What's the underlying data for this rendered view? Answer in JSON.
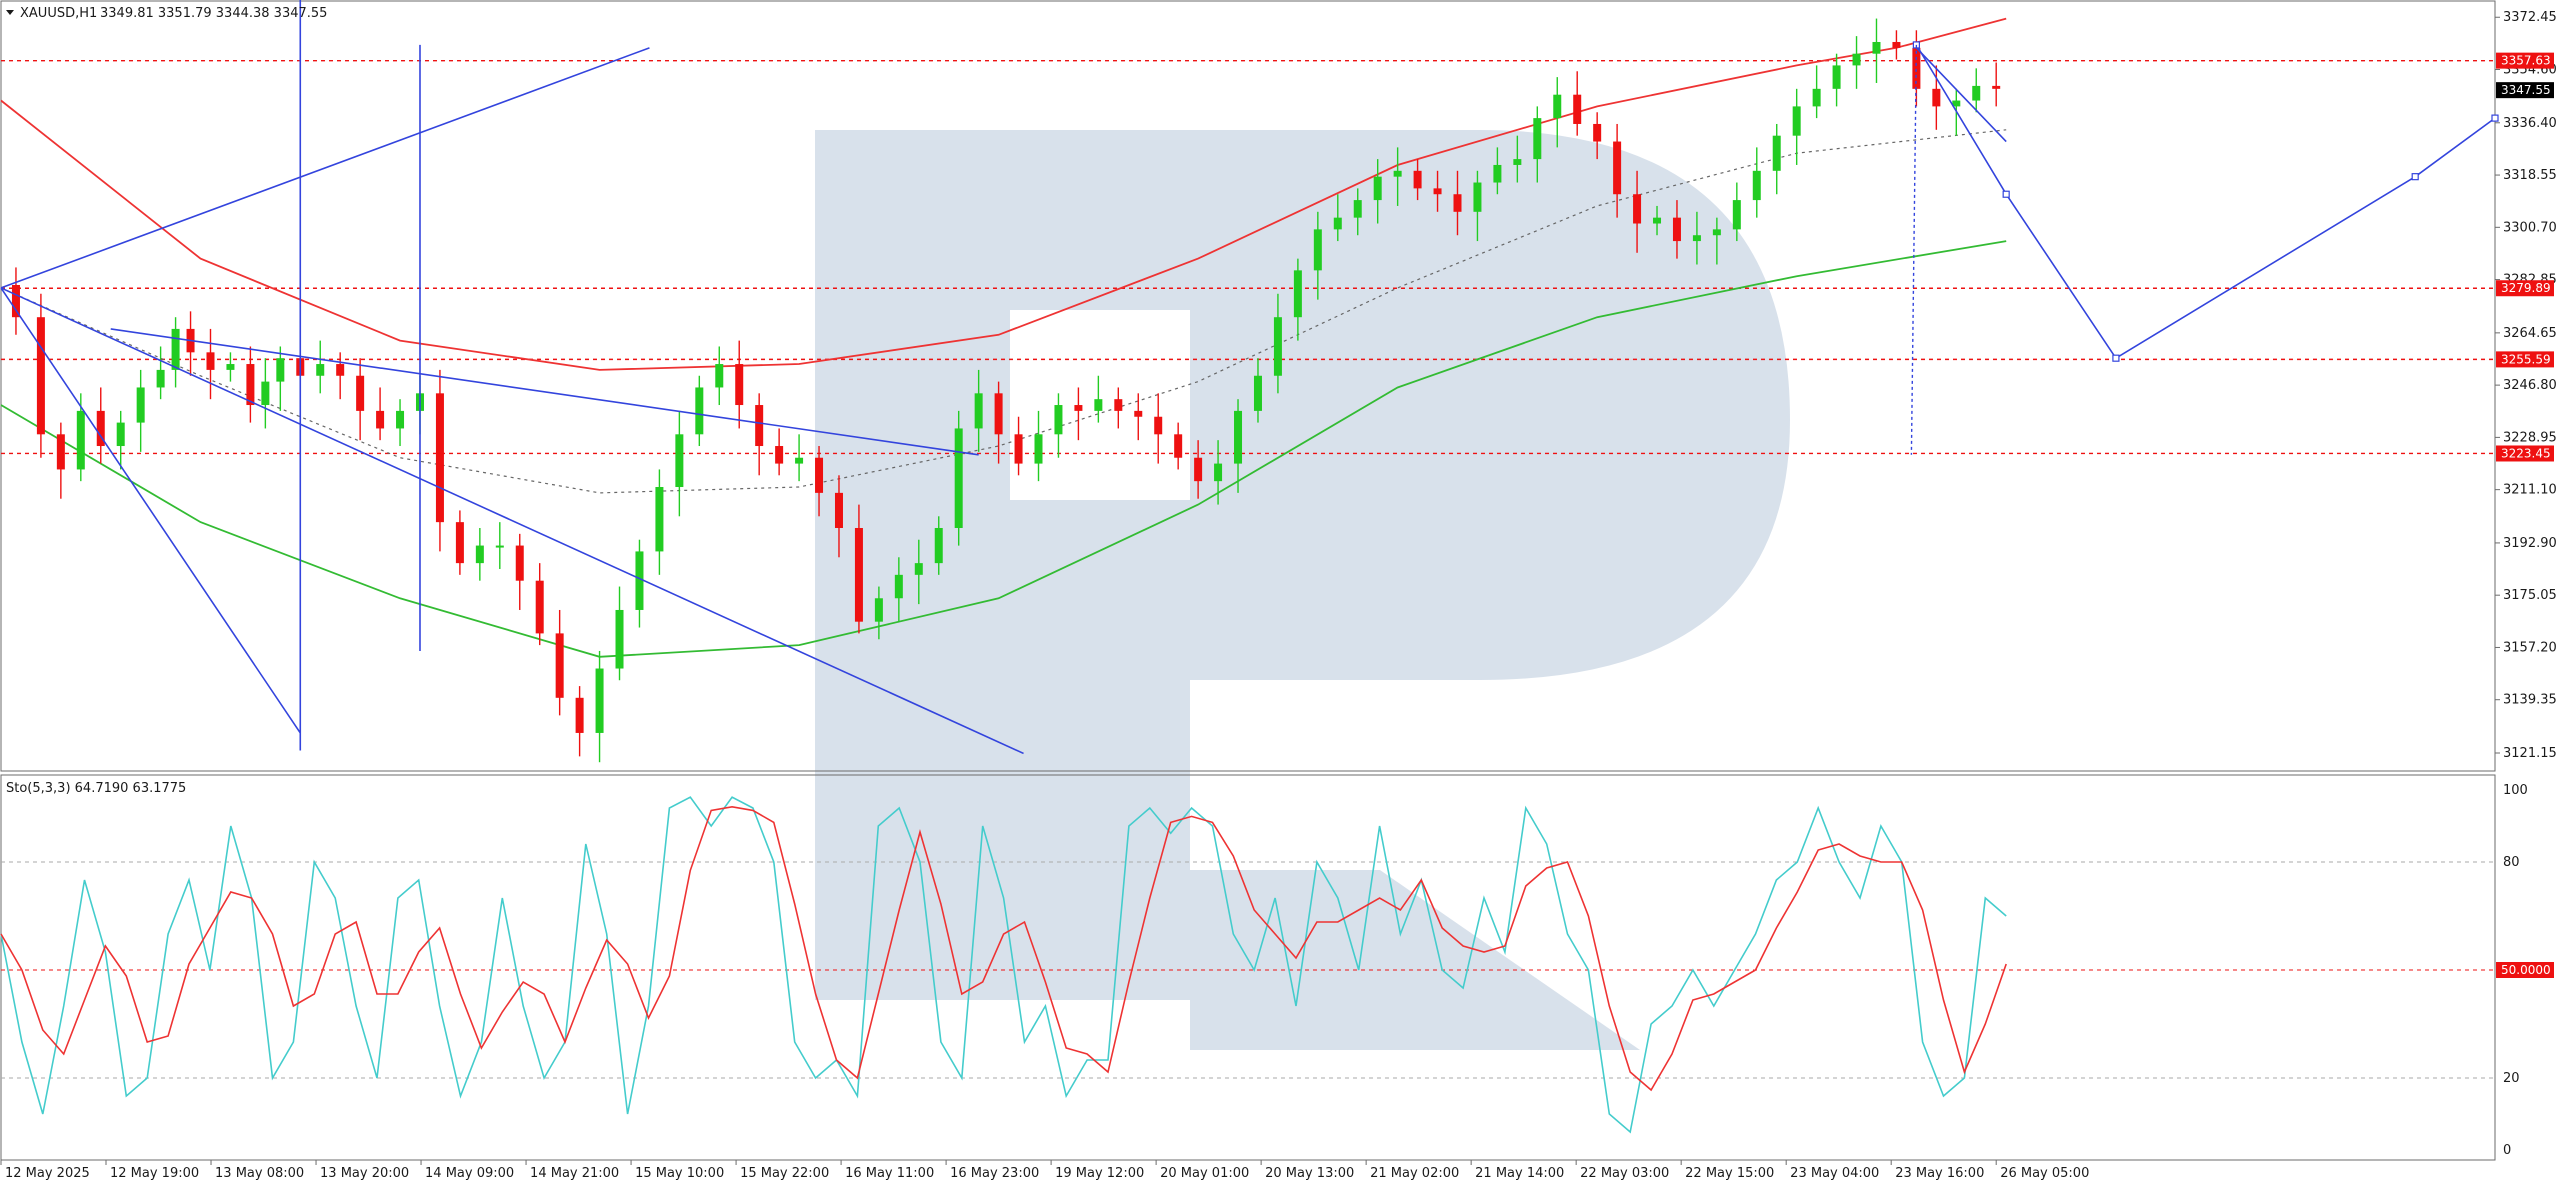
{
  "header": {
    "symbol": "XAUUSD,H1",
    "ohlc": "3349.81 3351.79 3344.38 3347.55"
  },
  "oscillator": {
    "label": "Sto(5,3,3) 64.7190 63.1775",
    "levels": [
      "100",
      "80",
      "20",
      "0"
    ],
    "mid_level": "50.0000"
  },
  "colors": {
    "bull": "#22cc22",
    "bear": "#ee1111",
    "trendline": "#3344dd",
    "ma_red": "#ee3333",
    "ma_green": "#33bb33",
    "level": "#ee1111",
    "stoch_main": "#44cccc",
    "stoch_signal": "#ee3333",
    "watermark": "#d6dfea"
  },
  "chart_data": {
    "type": "candlestick",
    "title": "XAUUSD,H1",
    "price_ticks": [
      "3372.45",
      "3354.60",
      "3336.40",
      "3318.55",
      "3300.70",
      "3282.85",
      "3264.65",
      "3246.80",
      "3228.95",
      "3211.10",
      "3192.90",
      "3175.05",
      "3157.20",
      "3139.35",
      "3121.15"
    ],
    "time_ticks": [
      "12 May 2025",
      "12 May 19:00",
      "13 May 08:00",
      "13 May 20:00",
      "14 May 09:00",
      "14 May 21:00",
      "15 May 10:00",
      "15 May 22:00",
      "16 May 11:00",
      "16 May 23:00",
      "19 May 12:00",
      "20 May 01:00",
      "20 May 13:00",
      "21 May 02:00",
      "21 May 14:00",
      "22 May 03:00",
      "22 May 15:00",
      "23 May 04:00",
      "23 May 16:00",
      "26 May 05:00"
    ],
    "price_levels": [
      {
        "label": "3357.63",
        "value": 3357.63
      },
      {
        "label": "3279.89",
        "value": 3279.89
      },
      {
        "label": "3255.59",
        "value": 3255.59
      },
      {
        "label": "3223.45",
        "value": 3223.45
      }
    ],
    "current_price": {
      "label": "3347.55",
      "value": 3347.55
    },
    "close_path": [
      [
        0,
        3281
      ],
      [
        6,
        3270
      ],
      [
        10,
        3230
      ],
      [
        14,
        3218
      ],
      [
        18,
        3238
      ],
      [
        22,
        3226
      ],
      [
        26,
        3234
      ],
      [
        30,
        3246
      ],
      [
        34,
        3252
      ],
      [
        36,
        3266
      ],
      [
        40,
        3258
      ],
      [
        44,
        3252
      ],
      [
        48,
        3254
      ],
      [
        52,
        3240
      ],
      [
        54,
        3248
      ],
      [
        58,
        3256
      ],
      [
        62,
        3250
      ],
      [
        66,
        3254
      ],
      [
        70,
        3250
      ],
      [
        74,
        3238
      ],
      [
        78,
        3232
      ],
      [
        82,
        3238
      ],
      [
        86,
        3244
      ],
      [
        90,
        3200
      ],
      [
        94,
        3186
      ],
      [
        98,
        3192
      ],
      [
        102,
        3192
      ],
      [
        106,
        3180
      ],
      [
        110,
        3162
      ],
      [
        114,
        3140
      ],
      [
        118,
        3128
      ],
      [
        122,
        3150
      ],
      [
        126,
        3170
      ],
      [
        130,
        3190
      ],
      [
        134,
        3212
      ],
      [
        138,
        3230
      ],
      [
        142,
        3246
      ],
      [
        146,
        3254
      ],
      [
        150,
        3240
      ],
      [
        154,
        3226
      ],
      [
        158,
        3220
      ],
      [
        162,
        3222
      ],
      [
        166,
        3210
      ],
      [
        170,
        3198
      ],
      [
        174,
        3166
      ],
      [
        178,
        3174
      ],
      [
        182,
        3182
      ],
      [
        186,
        3186
      ],
      [
        190,
        3198
      ],
      [
        194,
        3232
      ],
      [
        198,
        3244
      ],
      [
        202,
        3230
      ],
      [
        206,
        3220
      ],
      [
        210,
        3230
      ],
      [
        214,
        3240
      ],
      [
        218,
        3238
      ],
      [
        222,
        3242
      ],
      [
        226,
        3238
      ],
      [
        230,
        3236
      ],
      [
        234,
        3230
      ],
      [
        238,
        3222
      ],
      [
        242,
        3214
      ],
      [
        246,
        3220
      ],
      [
        250,
        3238
      ],
      [
        254,
        3250
      ],
      [
        258,
        3270
      ],
      [
        262,
        3286
      ],
      [
        266,
        3300
      ],
      [
        270,
        3304
      ],
      [
        274,
        3310
      ],
      [
        278,
        3318
      ],
      [
        282,
        3320
      ],
      [
        286,
        3314
      ],
      [
        290,
        3312
      ],
      [
        294,
        3306
      ],
      [
        298,
        3316
      ],
      [
        302,
        3322
      ],
      [
        306,
        3324
      ],
      [
        310,
        3338
      ],
      [
        314,
        3346
      ],
      [
        318,
        3336
      ],
      [
        322,
        3330
      ],
      [
        326,
        3312
      ],
      [
        330,
        3302
      ],
      [
        334,
        3304
      ],
      [
        338,
        3296
      ],
      [
        342,
        3298
      ],
      [
        346,
        3300
      ],
      [
        350,
        3310
      ],
      [
        354,
        3320
      ],
      [
        358,
        3332
      ],
      [
        362,
        3342
      ],
      [
        366,
        3348
      ],
      [
        370,
        3356
      ],
      [
        374,
        3360
      ],
      [
        378,
        3364
      ],
      [
        382,
        3362
      ],
      [
        386,
        3348
      ],
      [
        390,
        3342
      ],
      [
        394,
        3344
      ],
      [
        398,
        3349
      ],
      [
        402,
        3348
      ]
    ],
    "overlays": {
      "ma_red": [
        [
          0,
          3344
        ],
        [
          40,
          3290
        ],
        [
          80,
          3262
        ],
        [
          120,
          3252
        ],
        [
          160,
          3254
        ],
        [
          200,
          3264
        ],
        [
          240,
          3290
        ],
        [
          280,
          3322
        ],
        [
          320,
          3342
        ],
        [
          360,
          3356
        ],
        [
          380,
          3362
        ],
        [
          402,
          3372
        ]
      ],
      "ma_green": [
        [
          0,
          3240
        ],
        [
          40,
          3200
        ],
        [
          80,
          3174
        ],
        [
          120,
          3154
        ],
        [
          160,
          3158
        ],
        [
          200,
          3174
        ],
        [
          240,
          3206
        ],
        [
          280,
          3246
        ],
        [
          320,
          3270
        ],
        [
          360,
          3284
        ],
        [
          402,
          3296
        ]
      ],
      "dotted_fit": [
        [
          0,
          3280
        ],
        [
          40,
          3250
        ],
        [
          80,
          3222
        ],
        [
          120,
          3210
        ],
        [
          160,
          3212
        ],
        [
          200,
          3226
        ],
        [
          240,
          3248
        ],
        [
          280,
          3280
        ],
        [
          320,
          3308
        ],
        [
          360,
          3326
        ],
        [
          402,
          3334
        ]
      ]
    },
    "trendlines": [
      {
        "from": [
          0,
          3280
        ],
        "to": [
          130,
          3362
        ]
      },
      {
        "from": [
          0,
          3280
        ],
        "to": [
          205,
          3121
        ]
      },
      {
        "from": [
          22,
          3266
        ],
        "to": [
          196,
          3223
        ]
      },
      {
        "from": [
          0,
          3280
        ],
        "to": [
          60,
          3128
        ]
      },
      {
        "from": [
          60,
          3122
        ],
        "to": [
          60,
          3400
        ]
      },
      {
        "from": [
          84,
          3156
        ],
        "to": [
          84,
          3363
        ]
      },
      {
        "from": [
          384,
          3362
        ],
        "to": [
          402,
          3330
        ]
      }
    ],
    "forecast_path": [
      [
        384,
        3363
      ],
      [
        402,
        3312
      ],
      [
        424,
        3256
      ],
      [
        484,
        3318
      ],
      [
        500,
        3338
      ]
    ],
    "xlim": [
      0,
      500
    ],
    "ylim": [
      3115,
      3378
    ],
    "grid": false,
    "oscillator_series": {
      "name": "Sto(5,3,3)",
      "ylim": [
        0,
        100
      ],
      "levels": [
        20,
        50,
        80
      ],
      "main": [
        60,
        30,
        10,
        40,
        75,
        55,
        15,
        20,
        60,
        75,
        50,
        90,
        70,
        20,
        30,
        80,
        70,
        40,
        20,
        70,
        75,
        40,
        15,
        30,
        70,
        40,
        20,
        30,
        85,
        60,
        10,
        40,
        95,
        98,
        90,
        98,
        95,
        80,
        30,
        20,
        25,
        15,
        90,
        95,
        80,
        30,
        20,
        90,
        70,
        30,
        40,
        15,
        25,
        25,
        90,
        95,
        88,
        95,
        90,
        60,
        50,
        70,
        40,
        80,
        70,
        50,
        90,
        60,
        75,
        50,
        45,
        70,
        55,
        95,
        85,
        60,
        50,
        10,
        5,
        35,
        40,
        50,
        40,
        50,
        60,
        75,
        80,
        95,
        80,
        70,
        90,
        80,
        30,
        15,
        20,
        70,
        65
      ]
    }
  }
}
